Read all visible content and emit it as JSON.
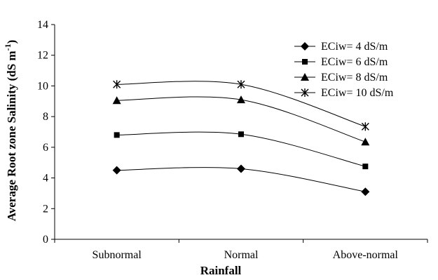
{
  "chart_data": {
    "type": "line",
    "categories": [
      "Subnormal",
      "Normal",
      "Above-normal"
    ],
    "xlabel": "Rainfall",
    "ylabel": "Average Root zone Salinity (dS m",
    "ylabel_superscript": "-1",
    "ylabel_suffix": ")",
    "ylim": [
      0,
      14
    ],
    "yticks": [
      0,
      2,
      4,
      6,
      8,
      10,
      12,
      14
    ],
    "grid": false,
    "legend_position": "top-right",
    "series": [
      {
        "name": "ECiw= 4 dS/m",
        "marker": "diamond",
        "values": [
          4.5,
          4.6,
          3.1
        ]
      },
      {
        "name": "ECiw= 6 dS/m",
        "marker": "square",
        "values": [
          6.8,
          6.85,
          4.75
        ]
      },
      {
        "name": "ECiw= 8 dS/m",
        "marker": "triangle",
        "values": [
          9.05,
          9.1,
          6.35
        ]
      },
      {
        "name": "ECiw= 10 dS/m",
        "marker": "asterisk",
        "values": [
          10.1,
          10.1,
          7.35
        ]
      }
    ]
  }
}
